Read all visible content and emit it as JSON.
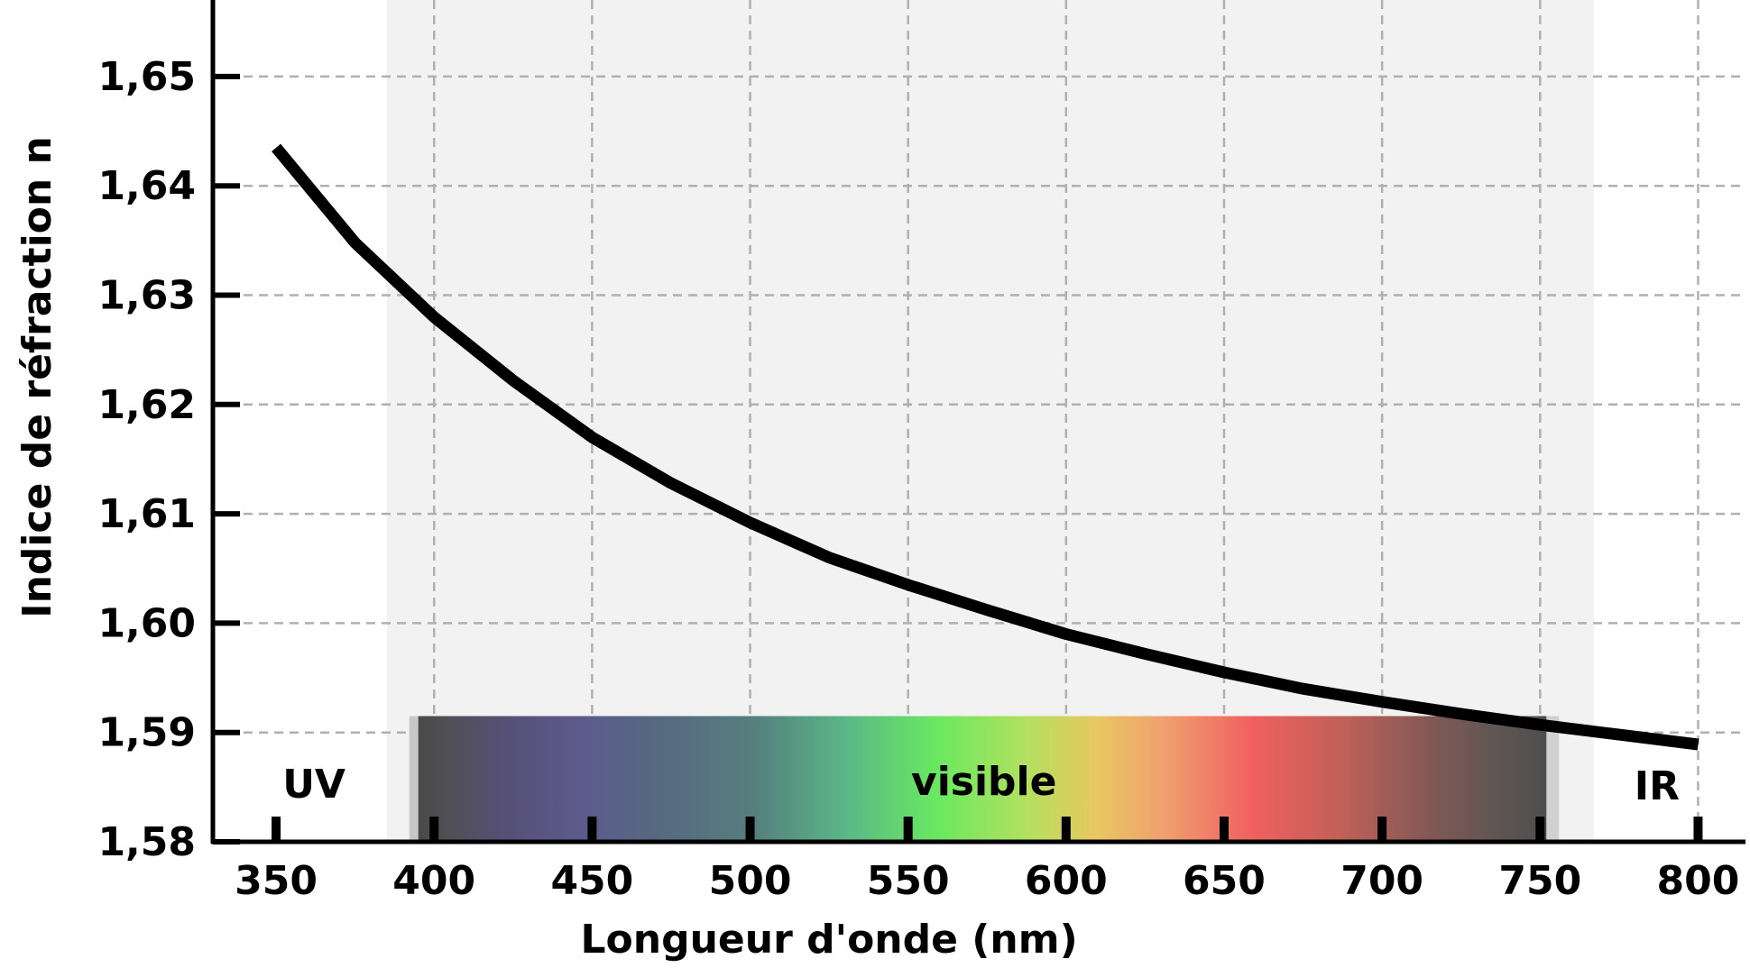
{
  "chart_data": {
    "type": "line",
    "xlabel": "Longueur d'onde (nm)",
    "ylabel": "Indice de réfraction n",
    "xlim": [
      330,
      815
    ],
    "ylim": [
      1.58,
      1.657
    ],
    "x_ticks": [
      350,
      400,
      450,
      500,
      550,
      600,
      650,
      700,
      750,
      800
    ],
    "y_ticks": [
      1.58,
      1.59,
      1.6,
      1.61,
      1.62,
      1.63,
      1.64,
      1.65
    ],
    "y_tick_labels": [
      "1,58",
      "1,59",
      "1,60",
      "1,61",
      "1,62",
      "1,63",
      "1,64",
      "1,65"
    ],
    "grid": true,
    "series": [
      {
        "x": [
          350,
          375,
          400,
          425,
          450,
          475,
          500,
          525,
          550,
          575,
          600,
          625,
          650,
          675,
          700,
          725,
          750,
          775,
          800
        ],
        "y": [
          1.6435,
          1.6348,
          1.628,
          1.6222,
          1.617,
          1.6128,
          1.6092,
          1.606,
          1.6035,
          1.6012,
          1.599,
          1.5972,
          1.5955,
          1.594,
          1.5928,
          1.5917,
          1.5907,
          1.5898,
          1.5889
        ]
      }
    ],
    "annotations": {
      "uv": "UV",
      "visible": "visible",
      "ir": "IR"
    },
    "regions": {
      "shaded_x": [
        385,
        767
      ],
      "spectrum_x": [
        395,
        752
      ],
      "spectrum_y": [
        1.58,
        1.5915
      ]
    },
    "colors": {
      "line": "#000000",
      "shade": "#f2f2f2",
      "grid": "#b0b0b0"
    }
  }
}
